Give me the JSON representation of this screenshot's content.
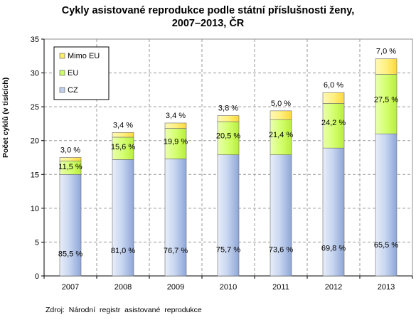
{
  "chart_data": {
    "type": "bar",
    "stacked": true,
    "title_line1": "Cykly asistované reprodukce podle státní příslušnosti ženy,",
    "title_line2": "2007–2013, ČR",
    "ylabel": "Počet cyklů (v tisících)",
    "source": "Zdroj:  Národní  registr  asistované  reprodukce",
    "categories": [
      "2007",
      "2008",
      "2009",
      "2010",
      "2011",
      "2012",
      "2013"
    ],
    "ylim": [
      0,
      35
    ],
    "yticks": [
      "0",
      "5",
      "10",
      "15",
      "20",
      "25",
      "30",
      "35"
    ],
    "grid": true,
    "legend_position": "top-left",
    "series": [
      {
        "name": "CZ",
        "color": "#bdd0ee",
        "values": [
          15.0,
          17.2,
          17.3,
          17.9,
          17.9,
          18.9,
          21.0
        ],
        "labels": [
          "85,5 %",
          "81,0 %",
          "76,7 %",
          "75,7 %",
          "73,6 %",
          "69,8 %",
          "65,5 %"
        ]
      },
      {
        "name": "EU",
        "color": "#ccff66",
        "values": [
          2.0,
          3.3,
          4.5,
          4.9,
          5.2,
          6.6,
          8.8
        ],
        "labels": [
          "11,5 %",
          "15,6 %",
          "19,9 %",
          "20,5 %",
          "21,4 %",
          "24,2 %",
          "27,5 %"
        ]
      },
      {
        "name": "Mimo EU",
        "color": "#ffee66",
        "values": [
          0.5,
          0.7,
          0.8,
          0.9,
          1.3,
          1.6,
          2.3
        ],
        "labels": [
          "3,0 %",
          "3,4 %",
          "3,4 %",
          "3,8 %",
          "5,0 %",
          "6,0 %",
          "7,0 %"
        ]
      }
    ]
  }
}
